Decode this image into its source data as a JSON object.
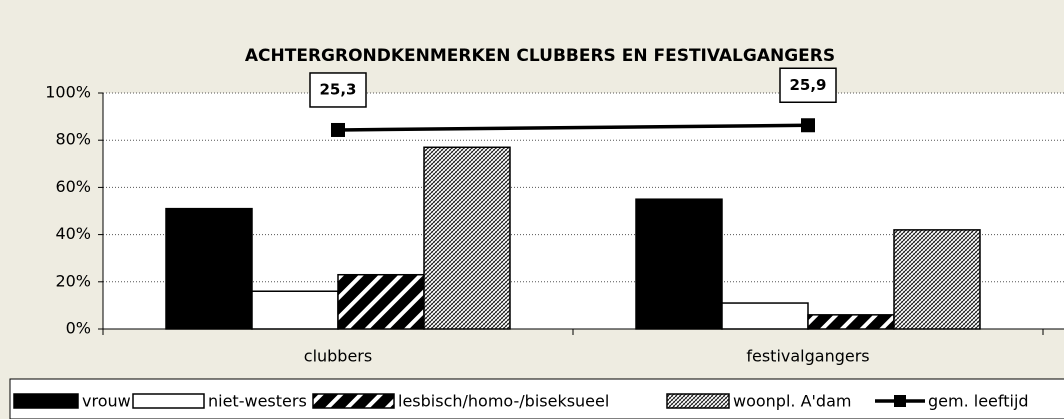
{
  "chart_data": {
    "type": "bar",
    "title": "ACHTERGRONDKENMERKEN CLUBBERS EN FESTIVALGANGERS",
    "categories": [
      "clubbers",
      "festivalgangers"
    ],
    "series": [
      {
        "name": "vrouw",
        "color": "#000000",
        "values": [
          51,
          55
        ]
      },
      {
        "name": "niet-westers",
        "color": "#ffffff",
        "values": [
          16,
          11
        ]
      },
      {
        "name": "lesbisch/homo-/biseksueel",
        "color": "#000000",
        "pattern": "wide-diagonal",
        "values": [
          23,
          6
        ]
      },
      {
        "name": "woonpl. A'dam",
        "color": "#000000",
        "pattern": "fine-crosshatch",
        "values": [
          77,
          42
        ]
      },
      {
        "name": "gem. leeftijd",
        "type": "line",
        "axis": "y2",
        "color": "#000000",
        "values": [
          25.3,
          25.9
        ],
        "value_labels": [
          "25,3",
          "25,9"
        ]
      }
    ],
    "ylim": [
      0,
      100
    ],
    "yticks": [
      {
        "value": 0,
        "label": "0%"
      },
      {
        "value": 20,
        "label": "20%"
      },
      {
        "value": 40,
        "label": "40%"
      },
      {
        "value": 60,
        "label": "60%"
      },
      {
        "value": 80,
        "label": "80%"
      },
      {
        "value": 100,
        "label": "100%"
      }
    ],
    "y2lim": [
      0,
      30
    ],
    "grid": true,
    "legend": "bottom"
  }
}
